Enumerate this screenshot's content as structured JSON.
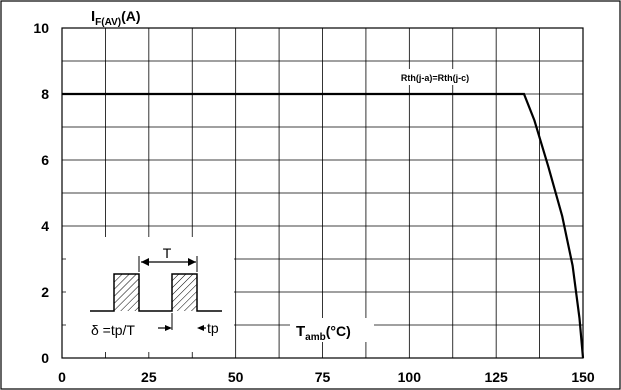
{
  "chart_data": {
    "type": "line",
    "ylabel_main": "I",
    "ylabel_sub": "F(AV)",
    "ylabel_unit": "(A)",
    "xlabel_main": "T",
    "xlabel_sub": "amb",
    "xlabel_unit": "(°C)",
    "xlim": [
      0,
      150
    ],
    "ylim": [
      0,
      10
    ],
    "x_ticks": [
      0,
      25,
      50,
      75,
      100,
      125,
      150
    ],
    "y_ticks": [
      0,
      2,
      4,
      6,
      8,
      10
    ],
    "grid": true,
    "series": [
      {
        "name": "Rth(j-a)=Rth(j-c)",
        "x": [
          0,
          133,
          136,
          140,
          144,
          147,
          149,
          150
        ],
        "y": [
          8,
          8,
          7.2,
          5.8,
          4.3,
          2.8,
          1.2,
          0
        ]
      }
    ],
    "inset": {
      "period_label": "T",
      "pulse_label": "tp",
      "duty_label": "δ =tp/T"
    }
  }
}
